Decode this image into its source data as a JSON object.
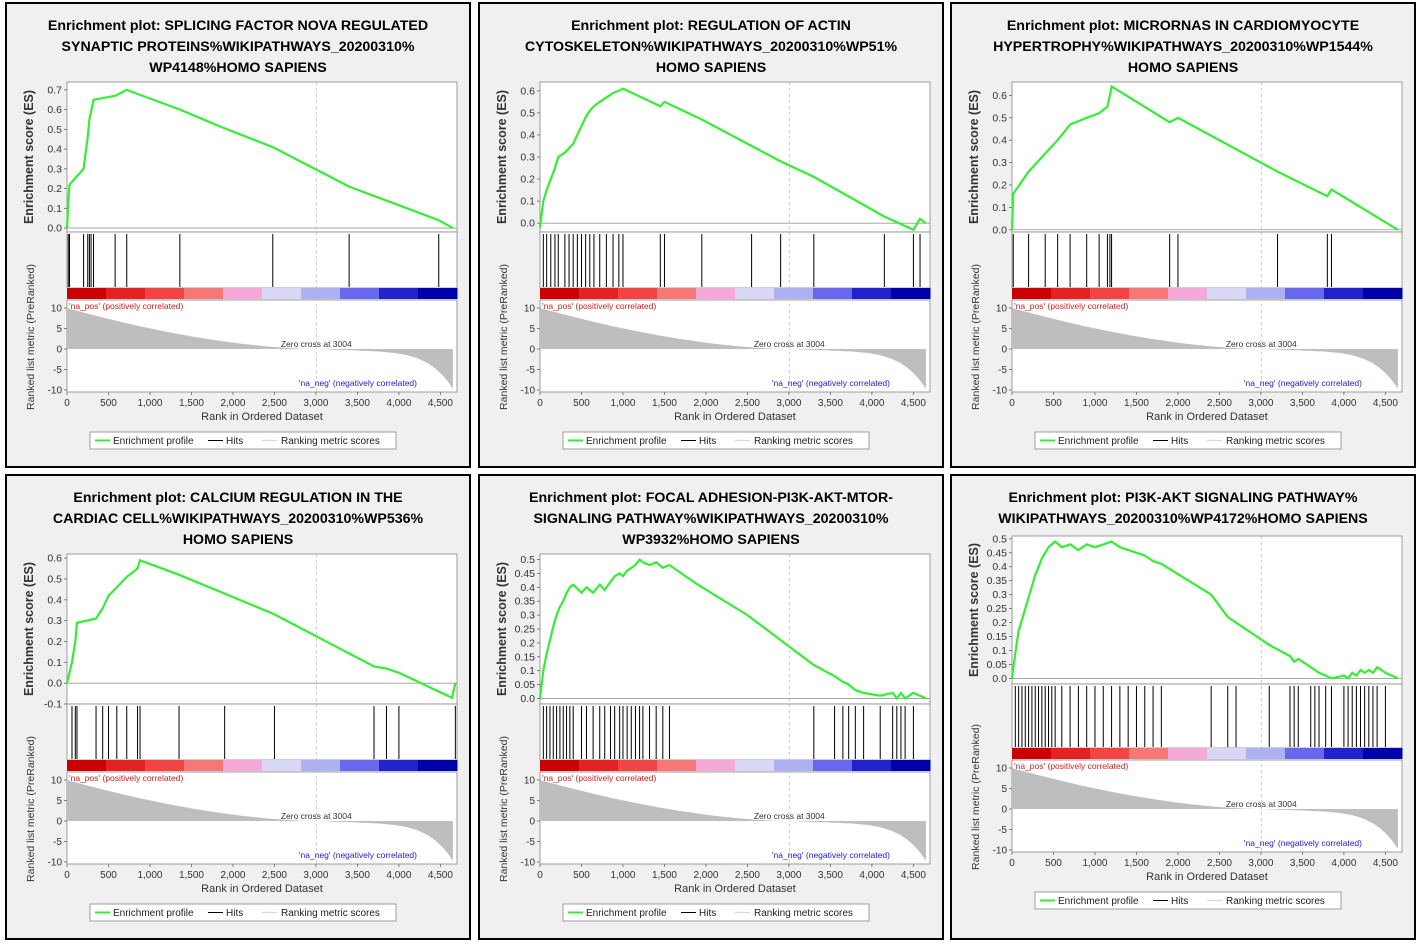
{
  "common": {
    "enrichment_ylabel": "Enrichment score (ES)",
    "metric_ylabel": "Ranked list metric (PreRanked)",
    "xlabel": "Rank in Ordered Dataset",
    "pos_label": "'na_pos' (positively correlated)",
    "neg_label": "'na_neg' (negatively correlated)",
    "zero_cross": "Zero cross at 3004",
    "legend": {
      "enrichment": "Enrichment profile",
      "hits": "Hits",
      "ranking": "Ranking metric scores"
    },
    "x_ticks": [
      "0",
      "500",
      "1,000",
      "1,500",
      "2,000",
      "2,500",
      "3,000",
      "3,500",
      "4,000",
      "4,500"
    ],
    "metric_ticks": [
      "10",
      "5",
      "0",
      "-5",
      "-10"
    ]
  },
  "colors": {
    "enrichment": "#33ee33",
    "hits": "#000000",
    "metric": "#bebebe",
    "pos_text": "#d02020",
    "neg_text": "#2020d0",
    "heat": [
      "#cc0000",
      "#e52222",
      "#f24444",
      "#f77777",
      "#f6a8d8",
      "#d8d8f6",
      "#aeb0f4",
      "#6868ee",
      "#2222cc",
      "#0000aa"
    ]
  },
  "chart_data": [
    {
      "type": "line",
      "title": "Enrichment plot: SPLICING FACTOR NOVA REGULATED SYNAPTIC PROTEINS%WIKIPATHWAYS_20200310%WP4148%HOMO SAPIENS",
      "title_lines": [
        "Enrichment plot: SPLICING FACTOR NOVA REGULATED",
        "SYNAPTIC PROTEINS%WIKIPATHWAYS_20200310%",
        "WP4148%HOMO SAPIENS"
      ],
      "ylim": [
        -0.02,
        0.74
      ],
      "y_ticks": [
        0.0,
        0.1,
        0.2,
        0.3,
        0.4,
        0.5,
        0.6,
        0.7
      ],
      "xlim": [
        0,
        4700
      ],
      "hits": [
        15,
        30,
        200,
        250,
        270,
        290,
        320,
        580,
        720,
        1360,
        2480,
        3400,
        4480
      ],
      "es_x": [
        0,
        15,
        30,
        200,
        250,
        270,
        290,
        320,
        580,
        720,
        1360,
        1870,
        2480,
        3400,
        4480,
        4650
      ],
      "es_y": [
        0,
        0.12,
        0.22,
        0.3,
        0.46,
        0.55,
        0.59,
        0.65,
        0.67,
        0.7,
        0.6,
        0.51,
        0.41,
        0.21,
        0.04,
        0.0
      ]
    },
    {
      "type": "line",
      "title": "Enrichment plot: REGULATION OF ACTIN CYTOSKELETON%WIKIPATHWAYS_20200310%WP51%HOMO SAPIENS",
      "title_lines": [
        "Enrichment plot: REGULATION OF ACTIN",
        "CYTOSKELETON%WIKIPATHWAYS_20200310%WP51%",
        "HOMO SAPIENS"
      ],
      "ylim": [
        -0.04,
        0.64
      ],
      "y_ticks": [
        0.0,
        0.1,
        0.2,
        0.3,
        0.4,
        0.5,
        0.6
      ],
      "xlim": [
        0,
        4700
      ],
      "hits": [
        40,
        80,
        130,
        180,
        220,
        300,
        350,
        400,
        450,
        500,
        550,
        600,
        650,
        720,
        800,
        880,
        950,
        1000,
        1450,
        1500,
        1950,
        2550,
        2900,
        3300,
        4150,
        4500,
        4580
      ],
      "es_x": [
        0,
        40,
        80,
        130,
        180,
        220,
        300,
        350,
        400,
        450,
        500,
        550,
        600,
        650,
        720,
        800,
        880,
        950,
        1000,
        1450,
        1500,
        1950,
        2550,
        2900,
        3300,
        4150,
        4500,
        4580,
        4650
      ],
      "es_y": [
        -0.02,
        0.1,
        0.15,
        0.2,
        0.25,
        0.3,
        0.32,
        0.34,
        0.36,
        0.4,
        0.44,
        0.48,
        0.51,
        0.53,
        0.55,
        0.57,
        0.59,
        0.6,
        0.61,
        0.53,
        0.55,
        0.47,
        0.35,
        0.28,
        0.21,
        0.03,
        -0.03,
        0.02,
        0.0
      ]
    },
    {
      "type": "line",
      "title": "Enrichment plot: MICRORNAS IN CARDIOMYOCYTE HYPERTROPHY%WIKIPATHWAYS_20200310%WP1544%HOMO SAPIENS",
      "title_lines": [
        "Enrichment plot: MICRORNAS IN CARDIOMYOCYTE",
        "HYPERTROPHY%WIKIPATHWAYS_20200310%WP1544%",
        "HOMO SAPIENS"
      ],
      "ylim": [
        -0.01,
        0.66
      ],
      "y_ticks": [
        0.0,
        0.1,
        0.2,
        0.3,
        0.4,
        0.5,
        0.6
      ],
      "xlim": [
        0,
        4700
      ],
      "hits": [
        15,
        200,
        400,
        550,
        700,
        900,
        1050,
        1150,
        1180,
        1200,
        1900,
        2000,
        3200,
        3800,
        3850
      ],
      "es_x": [
        0,
        15,
        200,
        400,
        550,
        700,
        900,
        1050,
        1150,
        1180,
        1200,
        1900,
        2000,
        3200,
        3800,
        3850,
        4650
      ],
      "es_y": [
        0,
        0.16,
        0.26,
        0.34,
        0.4,
        0.47,
        0.5,
        0.52,
        0.55,
        0.6,
        0.64,
        0.48,
        0.5,
        0.26,
        0.15,
        0.18,
        0.0
      ]
    },
    {
      "type": "line",
      "title": "Enrichment plot: CALCIUM REGULATION IN THE CARDIAC CELL%WIKIPATHWAYS_20200310%WP536%HOMO SAPIENS",
      "title_lines": [
        "Enrichment plot: CALCIUM REGULATION IN THE",
        "CARDIAC CELL%WIKIPATHWAYS_20200310%WP536%",
        "HOMO SAPIENS"
      ],
      "ylim": [
        -0.1,
        0.62
      ],
      "y_ticks": [
        -0.1,
        0.0,
        0.1,
        0.2,
        0.3,
        0.4,
        0.5,
        0.6
      ],
      "xlim": [
        0,
        4700
      ],
      "hits": [
        60,
        100,
        120,
        350,
        430,
        500,
        600,
        720,
        850,
        880,
        1350,
        1900,
        2500,
        3700,
        3850,
        4000,
        4680
      ],
      "es_x": [
        0,
        60,
        100,
        120,
        350,
        430,
        500,
        600,
        720,
        850,
        880,
        1350,
        1900,
        2500,
        3700,
        3850,
        4000,
        4640,
        4680
      ],
      "es_y": [
        0,
        0.1,
        0.2,
        0.29,
        0.31,
        0.36,
        0.42,
        0.46,
        0.51,
        0.55,
        0.59,
        0.52,
        0.43,
        0.33,
        0.08,
        0.07,
        0.05,
        -0.07,
        0.0
      ]
    },
    {
      "type": "line",
      "title": "Enrichment plot: FOCAL ADHESION-PI3K-AKT-MTOR-SIGNALING PATHWAY%WIKIPATHWAYS_20200310%WP3932%HOMO SAPIENS",
      "title_lines": [
        "Enrichment plot: FOCAL ADHESION-PI3K-AKT-MTOR-",
        "SIGNALING PATHWAY%WIKIPATHWAYS_20200310%",
        "WP3932%HOMO SAPIENS"
      ],
      "ylim": [
        -0.02,
        0.52
      ],
      "y_ticks": [
        0.0,
        0.05,
        0.1,
        0.15,
        0.2,
        0.25,
        0.3,
        0.35,
        0.4,
        0.45,
        0.5
      ],
      "xlim": [
        0,
        4700
      ],
      "hits": [
        40,
        80,
        120,
        160,
        200,
        240,
        280,
        320,
        360,
        400,
        500,
        560,
        640,
        720,
        780,
        850,
        900,
        960,
        1000,
        1050,
        1100,
        1150,
        1200,
        1240,
        1320,
        1400,
        1480,
        1560,
        3300,
        3550,
        3650,
        3720,
        3800,
        3900,
        4100,
        4250,
        4300,
        4350,
        4400,
        4500
      ],
      "es_x": [
        0,
        40,
        80,
        120,
        160,
        200,
        240,
        280,
        320,
        360,
        400,
        500,
        560,
        640,
        720,
        780,
        850,
        900,
        960,
        1000,
        1050,
        1100,
        1150,
        1200,
        1240,
        1320,
        1400,
        1480,
        1560,
        1900,
        2500,
        3300,
        3550,
        3650,
        3720,
        3800,
        3900,
        4100,
        4250,
        4300,
        4350,
        4400,
        4500,
        4650
      ],
      "es_y": [
        0,
        0.1,
        0.16,
        0.21,
        0.26,
        0.3,
        0.33,
        0.35,
        0.38,
        0.4,
        0.41,
        0.38,
        0.4,
        0.38,
        0.41,
        0.39,
        0.42,
        0.44,
        0.45,
        0.44,
        0.46,
        0.47,
        0.48,
        0.5,
        0.49,
        0.48,
        0.49,
        0.47,
        0.48,
        0.41,
        0.3,
        0.12,
        0.08,
        0.06,
        0.05,
        0.03,
        0.02,
        0.01,
        0.02,
        0.0,
        0.02,
        0.0,
        0.02,
        0.0
      ]
    },
    {
      "type": "line",
      "title": "Enrichment plot: PI3K-AKT SIGNALING PATHWAY%WIKIPATHWAYS_20200310%WP4172%HOMO SAPIENS",
      "title_lines": [
        "Enrichment plot: PI3K-AKT SIGNALING PATHWAY%",
        "WIKIPATHWAYS_20200310%WP4172%HOMO SAPIENS"
      ],
      "ylim": [
        -0.02,
        0.51
      ],
      "y_ticks": [
        0.0,
        0.05,
        0.1,
        0.15,
        0.2,
        0.25,
        0.3,
        0.35,
        0.4,
        0.45,
        0.5
      ],
      "xlim": [
        0,
        4700
      ],
      "hits": [
        40,
        80,
        120,
        160,
        200,
        240,
        280,
        320,
        360,
        400,
        440,
        480,
        520,
        600,
        700,
        800,
        900,
        1000,
        1100,
        1200,
        1300,
        1400,
        1500,
        1600,
        1700,
        1800,
        2400,
        2600,
        2700,
        3100,
        3350,
        3400,
        3450,
        3600,
        3650,
        3700,
        3780,
        3850,
        4000,
        4050,
        4100,
        4150,
        4200,
        4250,
        4300,
        4350,
        4400,
        4500
      ],
      "es_x": [
        0,
        40,
        80,
        120,
        160,
        200,
        240,
        280,
        320,
        360,
        400,
        440,
        480,
        520,
        600,
        700,
        800,
        900,
        1000,
        1100,
        1200,
        1300,
        1400,
        1500,
        1600,
        1700,
        1800,
        2400,
        2600,
        2700,
        3100,
        3350,
        3400,
        3450,
        3600,
        3650,
        3700,
        3780,
        3850,
        4000,
        4050,
        4100,
        4150,
        4200,
        4250,
        4300,
        4350,
        4400,
        4500,
        4650
      ],
      "es_y": [
        0,
        0.09,
        0.17,
        0.21,
        0.25,
        0.29,
        0.33,
        0.37,
        0.4,
        0.43,
        0.45,
        0.47,
        0.48,
        0.49,
        0.47,
        0.48,
        0.46,
        0.48,
        0.47,
        0.48,
        0.49,
        0.47,
        0.46,
        0.45,
        0.44,
        0.42,
        0.41,
        0.3,
        0.22,
        0.2,
        0.12,
        0.08,
        0.06,
        0.07,
        0.04,
        0.03,
        0.02,
        0.01,
        0.0,
        0.01,
        0.0,
        0.02,
        0.01,
        0.03,
        0.02,
        0.03,
        0.02,
        0.04,
        0.02,
        0.0
      ]
    }
  ]
}
